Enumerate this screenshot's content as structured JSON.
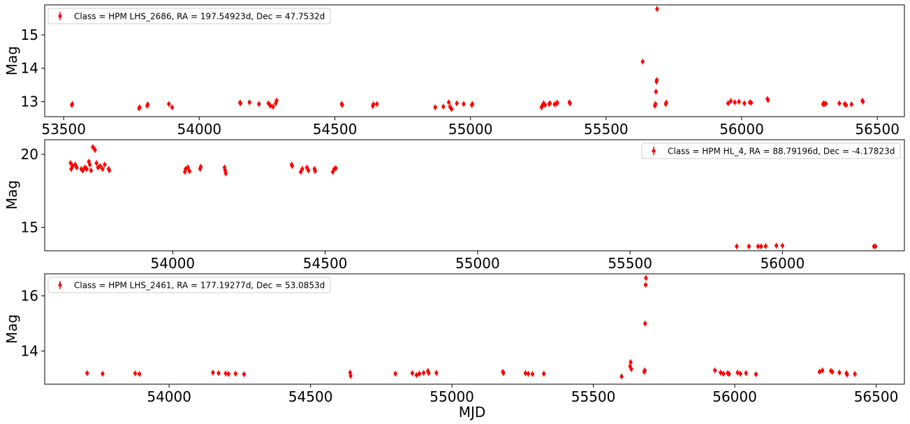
{
  "figure": {
    "background": "#ffffff",
    "marker_color": "#ff0000"
  },
  "chart_data": [
    {
      "type": "scatter",
      "title": "",
      "xlabel": "MJD",
      "ylabel": "Mag",
      "xlim": [
        53430,
        56600
      ],
      "ylim": [
        12.55,
        15.9
      ],
      "xticks": [
        53500,
        54000,
        54500,
        55000,
        55500,
        56000,
        56500
      ],
      "yticks": [
        13,
        14,
        15
      ],
      "legend": {
        "text": "Class = HPM LHS_2686, RA = 197.54923d, Dec = 47.7532d",
        "loc": "upper left"
      },
      "series": [
        {
          "name": "Class = HPM LHS_2686, RA = 197.54923d, Dec = 47.7532d",
          "x": [
            53530,
            53532,
            53778,
            53780,
            53808,
            53810,
            53888,
            53900,
            54150,
            54152,
            54185,
            54220,
            54255,
            54262,
            54272,
            54282,
            54285,
            54525,
            54527,
            54640,
            54642,
            54655,
            54870,
            54900,
            54920,
            54925,
            54930,
            54950,
            54975,
            55005,
            55007,
            55262,
            55265,
            55268,
            55270,
            55275,
            55290,
            55293,
            55310,
            55318,
            55320,
            55365,
            55367,
            55635,
            55680,
            55682,
            55684,
            55686,
            55687,
            55688,
            55720,
            55722,
            55950,
            55960,
            55975,
            55990,
            56010,
            56030,
            56035,
            56095,
            56097,
            56300,
            56302,
            56305,
            56310,
            56360,
            56380,
            56385,
            56405,
            56445,
            56447
          ],
          "y": [
            12.9,
            12.93,
            12.8,
            12.83,
            12.88,
            12.92,
            12.93,
            12.83,
            12.97,
            12.95,
            12.98,
            12.93,
            12.95,
            12.88,
            12.85,
            12.95,
            13.03,
            12.93,
            12.9,
            12.87,
            12.92,
            12.93,
            12.83,
            12.85,
            12.98,
            12.84,
            12.78,
            12.95,
            12.93,
            12.9,
            12.93,
            12.83,
            12.88,
            12.92,
            12.95,
            12.9,
            12.93,
            12.95,
            12.92,
            12.94,
            12.97,
            12.98,
            12.95,
            14.2,
            12.88,
            12.93,
            13.3,
            13.6,
            13.65,
            15.78,
            12.93,
            12.97,
            12.95,
            13.02,
            12.98,
            13.0,
            12.95,
            12.98,
            12.97,
            13.08,
            13.05,
            12.92,
            12.95,
            12.93,
            12.94,
            12.95,
            12.93,
            12.9,
            12.92,
            13.03,
            13.0
          ]
        }
      ]
    },
    {
      "type": "scatter",
      "title": "",
      "xlabel": "MJD",
      "ylabel": "Mag",
      "xlim": [
        53580,
        56400
      ],
      "ylim": [
        13.4,
        21.0
      ],
      "xticks": [
        54000,
        54500,
        55000,
        55500,
        56000
      ],
      "yticks": [
        15,
        20
      ],
      "legend": {
        "text": "Class = HPM HL_4, RA = 88.79196d, Dec = -4.17823d",
        "loc": "upper right"
      },
      "series": [
        {
          "name": "Class = HPM HL_4, RA = 88.79196d, Dec = -4.17823d",
          "x": [
            53665,
            53667,
            53672,
            53680,
            53685,
            53700,
            53705,
            53712,
            53718,
            53725,
            53728,
            53732,
            53738,
            53745,
            53750,
            53755,
            53762,
            53770,
            53777,
            53790,
            53792,
            54040,
            54042,
            54050,
            54055,
            54090,
            54092,
            54170,
            54172,
            54174,
            54390,
            54392,
            54420,
            54425,
            54440,
            54445,
            54465,
            54467,
            54525,
            54530,
            54535,
            55850,
            55890,
            55920,
            55930,
            55945,
            55980,
            56000,
            56300,
            56305
          ],
          "y": [
            19.4,
            19.0,
            19.2,
            19.3,
            19.1,
            19.0,
            18.9,
            19.1,
            19.0,
            19.5,
            19.3,
            18.9,
            20.5,
            20.3,
            19.4,
            19.1,
            19.2,
            19.0,
            19.3,
            19.0,
            18.9,
            18.8,
            19.0,
            19.1,
            18.85,
            19.0,
            19.15,
            19.1,
            18.9,
            18.7,
            19.3,
            19.2,
            18.8,
            19.0,
            19.1,
            18.9,
            19.0,
            18.85,
            18.8,
            19.0,
            19.05,
            13.7,
            13.7,
            13.7,
            13.7,
            13.72,
            13.75,
            13.75,
            13.7,
            13.7
          ]
        }
      ]
    },
    {
      "type": "scatter",
      "title": "",
      "xlabel": "MJD",
      "ylabel": "Mag",
      "xlim": [
        53560,
        56600
      ],
      "ylim": [
        12.8,
        16.8
      ],
      "xticks": [
        54000,
        54500,
        55000,
        55500,
        56000,
        56500
      ],
      "yticks": [
        14,
        16
      ],
      "legend": {
        "text": "Class = HPM LHS_2461, RA = 177.19277d, Dec = 53.0853d",
        "loc": "upper left"
      },
      "series": [
        {
          "name": "Class = HPM LHS_2461, RA = 177.19277d, Dec = 53.0853d",
          "x": [
            53710,
            53765,
            53880,
            53895,
            54155,
            54175,
            54200,
            54210,
            54235,
            54265,
            54640,
            54642,
            54800,
            54860,
            54875,
            54885,
            54900,
            54915,
            54918,
            54945,
            55180,
            55182,
            55260,
            55270,
            55285,
            55325,
            55600,
            55630,
            55632,
            55634,
            55680,
            55682,
            55683,
            55685,
            55686,
            55930,
            55950,
            55960,
            55975,
            55980,
            56010,
            56020,
            56040,
            56075,
            56300,
            56310,
            56340,
            56345,
            56370,
            56395,
            56397,
            56425
          ],
          "y": [
            13.2,
            13.18,
            13.19,
            13.17,
            13.22,
            13.2,
            13.19,
            13.17,
            13.18,
            13.16,
            13.22,
            13.1,
            13.18,
            13.2,
            13.13,
            13.18,
            13.21,
            13.28,
            13.2,
            13.21,
            13.25,
            13.2,
            13.2,
            13.18,
            13.17,
            13.18,
            13.08,
            13.45,
            13.6,
            13.35,
            13.25,
            13.3,
            15.0,
            16.4,
            16.65,
            13.3,
            13.22,
            13.18,
            13.2,
            13.17,
            13.22,
            13.18,
            13.2,
            13.16,
            13.25,
            13.3,
            13.28,
            13.25,
            13.22,
            13.2,
            13.15,
            13.17
          ]
        }
      ]
    }
  ]
}
